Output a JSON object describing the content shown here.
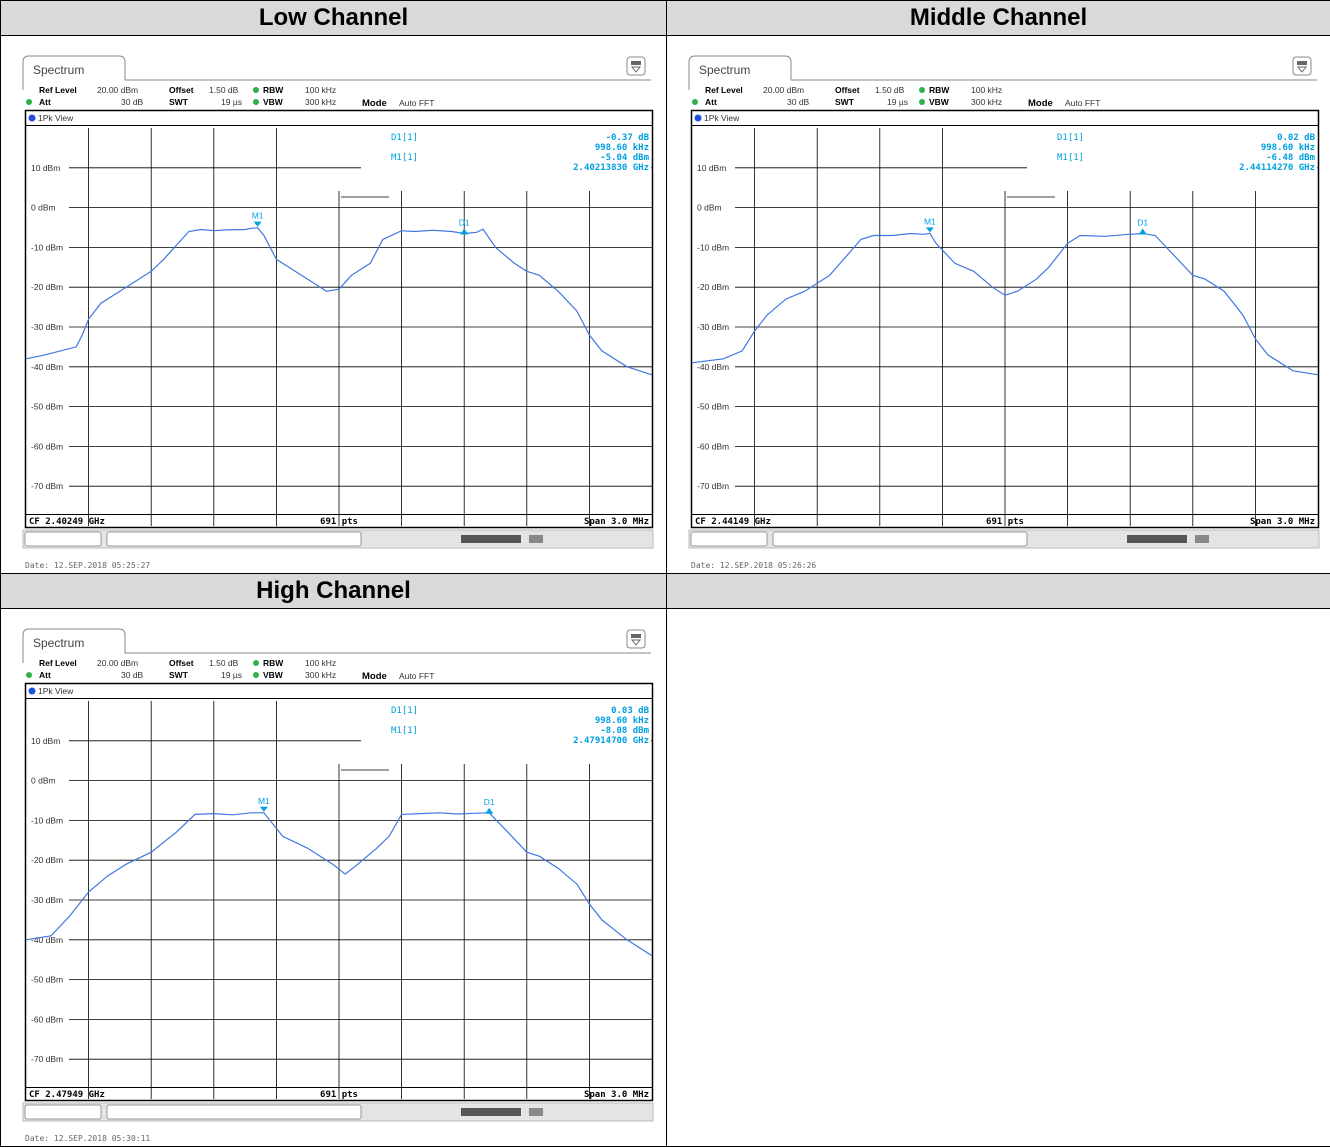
{
  "headers": [
    "Low Channel",
    "Middle Channel",
    "High Channel",
    ""
  ],
  "common": {
    "tab_title": "Spectrum",
    "ref_level_label": "Ref Level",
    "ref_level_value": "20.00 dBm",
    "offset_label": "Offset",
    "offset_value": "1.50 dB",
    "rbw_label": "RBW",
    "rbw_value": "100 kHz",
    "att_label": "Att",
    "att_value": "30 dB",
    "swt_label": "SWT",
    "swt_value": "19 µs",
    "vbw_label": "VBW",
    "vbw_value": "300 kHz",
    "mode_label": "Mode",
    "mode_value": "Auto FFT",
    "view_label": "1Pk View",
    "d1_label": "D1[1]",
    "m1_label": "M1[1]",
    "pts": "691 pts",
    "span": "Span 3.0 MHz",
    "marker_m1": "M1",
    "marker_d1": "D1",
    "y_tick_labels": [
      "10 dBm",
      "0 dBm",
      "-10 dBm",
      "-20 dBm",
      "-30 dBm",
      "-40 dBm",
      "-50 dBm",
      "-60 dBm",
      "-70 dBm"
    ],
    "accent_color": "#3f78e0",
    "readout_color": "#00a0e0"
  },
  "chart_data": [
    {
      "type": "line",
      "title": "Low Channel",
      "cf": "CF 2.40249 GHz",
      "date": "Date: 12.SEP.2018  05:25:27",
      "d1_value": "-0.37 dB",
      "d1_freq": "998.60 kHz",
      "m1_value": "-5.04 dBm",
      "m1_freq": "2.40213830 GHz",
      "ylim": [
        -80,
        20
      ],
      "x_points": [
        0,
        0.03,
        0.08,
        0.09,
        0.1,
        0.12,
        0.15,
        0.18,
        0.2,
        0.22,
        0.26,
        0.28,
        0.3,
        0.32,
        0.35,
        0.36,
        0.37,
        0.38,
        0.4,
        0.42,
        0.45,
        0.48,
        0.5,
        0.52,
        0.55,
        0.57,
        0.6,
        0.62,
        0.65,
        0.68,
        0.7,
        0.72,
        0.73,
        0.75,
        0.78,
        0.8,
        0.82,
        0.85,
        0.88,
        0.9,
        0.92,
        0.96,
        1
      ],
      "y_dbm": [
        -38,
        -37,
        -35,
        -32,
        -28,
        -24,
        -21,
        -18,
        -16,
        -13,
        -6,
        -5.5,
        -5.8,
        -5.6,
        -5.5,
        -5.2,
        -5.04,
        -7,
        -13,
        -15,
        -18,
        -21,
        -20.5,
        -17,
        -14,
        -8,
        -5.8,
        -6,
        -5.7,
        -6,
        -6.5,
        -6.2,
        -5.4,
        -10,
        -14,
        -16,
        -17,
        -21,
        -26,
        -32,
        -36,
        -40,
        -42
      ]
    },
    {
      "type": "line",
      "title": "Middle Channel",
      "cf": "CF 2.44149 GHz",
      "date": "Date: 12.SEP.2018  05:26:26",
      "d1_value": "0.02 dB",
      "d1_freq": "998.60 kHz",
      "m1_value": "-6.48 dBm",
      "m1_freq": "2.44114270 GHz",
      "ylim": [
        -80,
        20
      ],
      "x_points": [
        0,
        0.05,
        0.08,
        0.1,
        0.12,
        0.15,
        0.18,
        0.2,
        0.22,
        0.27,
        0.29,
        0.32,
        0.35,
        0.37,
        0.38,
        0.39,
        0.42,
        0.45,
        0.48,
        0.5,
        0.52,
        0.55,
        0.57,
        0.6,
        0.62,
        0.66,
        0.69,
        0.72,
        0.74,
        0.77,
        0.8,
        0.82,
        0.85,
        0.88,
        0.9,
        0.92,
        0.96,
        1
      ],
      "y_dbm": [
        -39,
        -38,
        -36,
        -31,
        -27,
        -23,
        -21,
        -19,
        -17,
        -8,
        -7,
        -7,
        -6.5,
        -6.7,
        -6.48,
        -9,
        -14,
        -16,
        -20,
        -22,
        -21,
        -18,
        -15,
        -9,
        -7,
        -7.2,
        -6.8,
        -6.5,
        -7,
        -12,
        -17,
        -18,
        -21,
        -27,
        -33,
        -37,
        -41,
        -42
      ]
    },
    {
      "type": "line",
      "title": "High Channel",
      "cf": "CF 2.47949 GHz",
      "date": "Date: 12.SEP.2018  05:30:11",
      "d1_value": "0.03 dB",
      "d1_freq": "998.60 kHz",
      "m1_value": "-8.08 dBm",
      "m1_freq": "2.47914700 GHz",
      "ylim": [
        -80,
        20
      ],
      "x_points": [
        0,
        0.04,
        0.07,
        0.1,
        0.13,
        0.16,
        0.2,
        0.24,
        0.27,
        0.3,
        0.33,
        0.36,
        0.38,
        0.41,
        0.45,
        0.49,
        0.51,
        0.53,
        0.56,
        0.58,
        0.6,
        0.63,
        0.66,
        0.69,
        0.72,
        0.74,
        0.77,
        0.8,
        0.82,
        0.85,
        0.88,
        0.9,
        0.92,
        0.96,
        1
      ],
      "y_dbm": [
        -40,
        -39,
        -34,
        -28,
        -24,
        -21,
        -18,
        -13,
        -8.5,
        -8.3,
        -8.6,
        -8.1,
        -8.08,
        -14,
        -17,
        -21,
        -23.5,
        -21,
        -17,
        -14,
        -8.5,
        -8.3,
        -8.1,
        -8.4,
        -8.2,
        -8.08,
        -13,
        -18,
        -19,
        -22,
        -26,
        -31,
        -35,
        -40,
        -44
      ]
    }
  ]
}
